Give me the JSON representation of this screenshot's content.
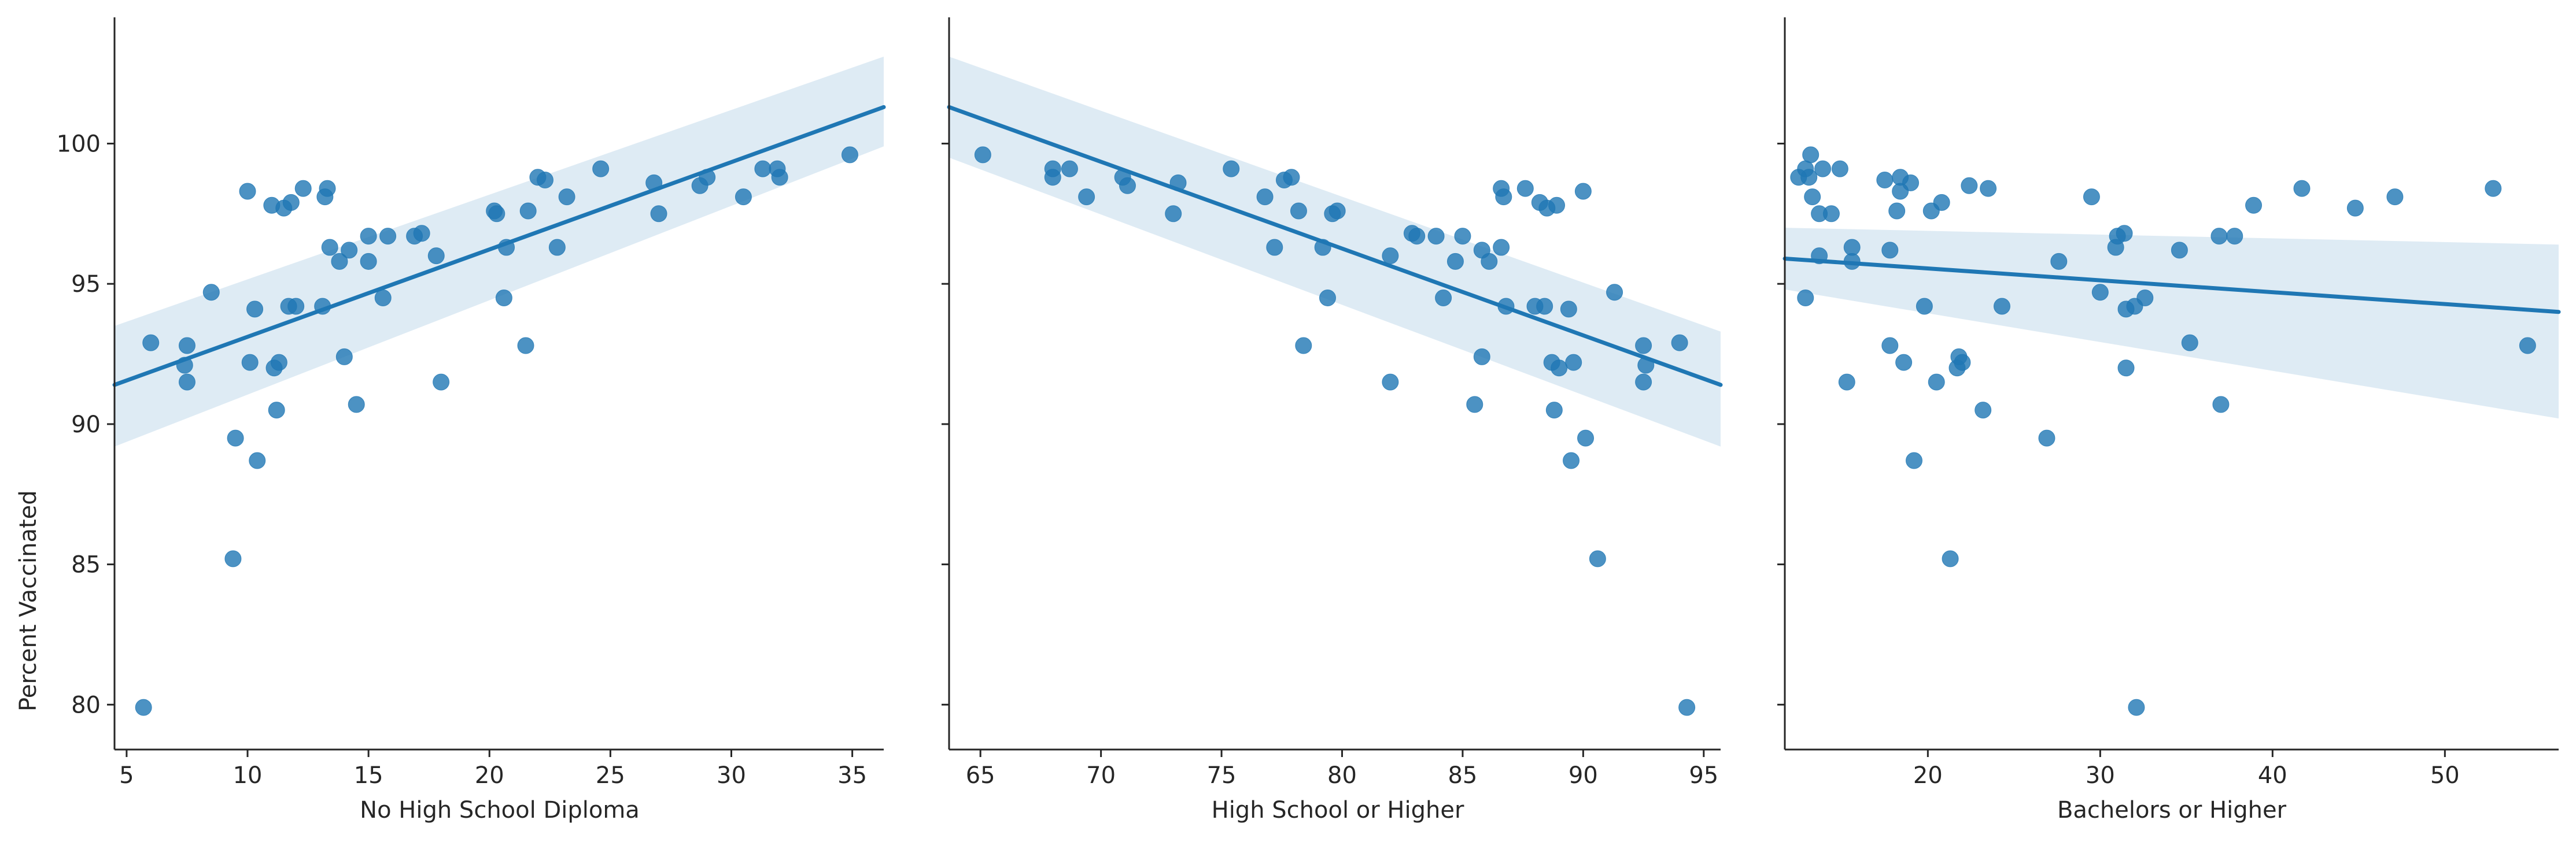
{
  "chart_data": [
    {
      "type": "scatter",
      "xlabel": "No High School Diploma",
      "ylabel": "Percent Vaccinated",
      "xlim": [
        4.5,
        36.3
      ],
      "ylim": [
        78.4,
        104.5
      ],
      "xticks": [
        "5",
        "10",
        "15",
        "20",
        "25",
        "30",
        "35"
      ],
      "yticks": [
        "80",
        "85",
        "90",
        "95",
        "100"
      ],
      "regression": {
        "x": [
          4.5,
          36.3
        ],
        "y": [
          91.4,
          101.3
        ],
        "ci_lower": [
          89.2,
          99.9
        ],
        "ci_upper": [
          93.5,
          103.1
        ]
      },
      "points": [
        [
          5.7,
          79.9
        ],
        [
          6.0,
          92.9
        ],
        [
          7.4,
          92.1
        ],
        [
          7.5,
          91.5
        ],
        [
          7.5,
          92.8
        ],
        [
          8.5,
          94.7
        ],
        [
          9.5,
          89.5
        ],
        [
          9.4,
          85.2
        ],
        [
          10.0,
          98.3
        ],
        [
          10.1,
          92.2
        ],
        [
          10.3,
          94.1
        ],
        [
          10.4,
          88.7
        ],
        [
          11.0,
          97.8
        ],
        [
          11.1,
          92.0
        ],
        [
          11.3,
          92.2
        ],
        [
          11.2,
          90.5
        ],
        [
          11.5,
          97.7
        ],
        [
          11.7,
          94.2
        ],
        [
          11.8,
          97.9
        ],
        [
          12.0,
          94.2
        ],
        [
          12.3,
          98.4
        ],
        [
          13.1,
          94.2
        ],
        [
          13.2,
          98.1
        ],
        [
          13.3,
          98.4
        ],
        [
          13.4,
          96.3
        ],
        [
          13.8,
          95.8
        ],
        [
          14.0,
          92.4
        ],
        [
          14.2,
          96.2
        ],
        [
          14.5,
          90.7
        ],
        [
          15.0,
          95.8
        ],
        [
          15.0,
          96.7
        ],
        [
          15.6,
          94.5
        ],
        [
          15.8,
          96.7
        ],
        [
          16.9,
          96.7
        ],
        [
          17.2,
          96.8
        ],
        [
          17.8,
          96.0
        ],
        [
          18.0,
          91.5
        ],
        [
          20.2,
          97.6
        ],
        [
          20.3,
          97.5
        ],
        [
          20.6,
          94.5
        ],
        [
          20.7,
          96.3
        ],
        [
          21.5,
          92.8
        ],
        [
          21.6,
          97.6
        ],
        [
          22.0,
          98.8
        ],
        [
          22.3,
          98.7
        ],
        [
          22.8,
          96.3
        ],
        [
          23.2,
          98.1
        ],
        [
          24.6,
          99.1
        ],
        [
          26.8,
          98.6
        ],
        [
          27.0,
          97.5
        ],
        [
          28.7,
          98.5
        ],
        [
          29.0,
          98.8
        ],
        [
          30.5,
          98.1
        ],
        [
          31.3,
          99.1
        ],
        [
          31.9,
          99.1
        ],
        [
          32.0,
          98.8
        ],
        [
          34.9,
          99.6
        ]
      ]
    },
    {
      "type": "scatter",
      "xlabel": "High School or Higher",
      "ylabel": "",
      "xlim": [
        63.7,
        95.7
      ],
      "ylim": [
        78.4,
        104.5
      ],
      "xticks": [
        "65",
        "70",
        "75",
        "80",
        "85",
        "90",
        "95"
      ],
      "yticks": [
        "80",
        "85",
        "90",
        "95",
        "100"
      ],
      "regression": {
        "x": [
          63.7,
          95.7
        ],
        "y": [
          101.3,
          91.4
        ],
        "ci_lower": [
          99.5,
          89.2
        ],
        "ci_upper": [
          103.1,
          93.3
        ]
      },
      "points": [
        [
          65.1,
          99.6
        ],
        [
          68.0,
          99.1
        ],
        [
          68.0,
          98.8
        ],
        [
          68.7,
          99.1
        ],
        [
          69.4,
          98.1
        ],
        [
          70.9,
          98.8
        ],
        [
          71.1,
          98.5
        ],
        [
          73.0,
          97.5
        ],
        [
          73.2,
          98.6
        ],
        [
          75.4,
          99.1
        ],
        [
          76.8,
          98.1
        ],
        [
          77.2,
          96.3
        ],
        [
          77.6,
          98.7
        ],
        [
          77.9,
          98.8
        ],
        [
          78.2,
          97.6
        ],
        [
          78.4,
          92.8
        ],
        [
          79.2,
          96.3
        ],
        [
          79.4,
          94.5
        ],
        [
          79.6,
          97.5
        ],
        [
          79.8,
          97.6
        ],
        [
          82.0,
          91.5
        ],
        [
          82.0,
          96.0
        ],
        [
          82.9,
          96.8
        ],
        [
          83.1,
          96.7
        ],
        [
          83.9,
          96.7
        ],
        [
          84.2,
          94.5
        ],
        [
          84.7,
          95.8
        ],
        [
          85.0,
          96.7
        ],
        [
          85.5,
          90.7
        ],
        [
          85.8,
          92.4
        ],
        [
          85.8,
          96.2
        ],
        [
          86.1,
          95.8
        ],
        [
          86.6,
          96.3
        ],
        [
          86.6,
          98.4
        ],
        [
          86.7,
          98.1
        ],
        [
          86.8,
          94.2
        ],
        [
          87.6,
          98.4
        ],
        [
          88.0,
          94.2
        ],
        [
          88.2,
          97.9
        ],
        [
          88.4,
          94.2
        ],
        [
          88.5,
          97.7
        ],
        [
          88.7,
          92.2
        ],
        [
          88.8,
          90.5
        ],
        [
          88.9,
          97.8
        ],
        [
          89.0,
          92.0
        ],
        [
          89.4,
          94.1
        ],
        [
          89.6,
          92.2
        ],
        [
          89.5,
          88.7
        ],
        [
          90.0,
          98.3
        ],
        [
          90.1,
          89.5
        ],
        [
          90.6,
          85.2
        ],
        [
          91.3,
          94.7
        ],
        [
          92.5,
          92.8
        ],
        [
          92.5,
          91.5
        ],
        [
          92.6,
          92.1
        ],
        [
          94.0,
          92.9
        ],
        [
          94.3,
          79.9
        ]
      ]
    },
    {
      "type": "scatter",
      "xlabel": "Bachelors or Higher",
      "ylabel": "",
      "xlim": [
        11.7,
        56.6
      ],
      "ylim": [
        78.4,
        104.5
      ],
      "xticks": [
        "20",
        "30",
        "40",
        "50"
      ],
      "yticks": [
        "80",
        "85",
        "90",
        "95",
        "100"
      ],
      "regression": {
        "x": [
          11.7,
          56.6
        ],
        "y": [
          95.9,
          94.0
        ],
        "ci_lower": [
          94.8,
          90.2
        ],
        "ci_upper": [
          97.0,
          96.4
        ]
      },
      "points": [
        [
          12.5,
          98.8
        ],
        [
          12.9,
          99.1
        ],
        [
          12.9,
          94.5
        ],
        [
          13.1,
          98.8
        ],
        [
          13.2,
          99.6
        ],
        [
          13.3,
          98.1
        ],
        [
          13.7,
          96.0
        ],
        [
          13.7,
          97.5
        ],
        [
          13.9,
          99.1
        ],
        [
          14.4,
          97.5
        ],
        [
          14.9,
          99.1
        ],
        [
          15.6,
          95.8
        ],
        [
          15.6,
          96.3
        ],
        [
          15.3,
          91.5
        ],
        [
          17.5,
          98.7
        ],
        [
          17.8,
          96.2
        ],
        [
          17.8,
          92.8
        ],
        [
          18.2,
          97.6
        ],
        [
          18.4,
          98.3
        ],
        [
          18.4,
          98.8
        ],
        [
          18.6,
          92.2
        ],
        [
          19.0,
          98.6
        ],
        [
          19.2,
          88.7
        ],
        [
          19.8,
          94.2
        ],
        [
          20.2,
          97.6
        ],
        [
          20.5,
          91.5
        ],
        [
          20.8,
          97.9
        ],
        [
          21.3,
          85.2
        ],
        [
          21.7,
          92.0
        ],
        [
          21.8,
          92.4
        ],
        [
          22.0,
          92.2
        ],
        [
          22.4,
          98.5
        ],
        [
          23.2,
          90.5
        ],
        [
          23.5,
          98.4
        ],
        [
          24.3,
          94.2
        ],
        [
          26.9,
          89.5
        ],
        [
          27.6,
          95.8
        ],
        [
          29.5,
          98.1
        ],
        [
          30.0,
          94.7
        ],
        [
          30.9,
          96.3
        ],
        [
          31.0,
          96.7
        ],
        [
          31.4,
          96.8
        ],
        [
          31.5,
          92.0
        ],
        [
          31.5,
          94.1
        ],
        [
          32.0,
          94.2
        ],
        [
          32.1,
          79.9
        ],
        [
          32.6,
          94.5
        ],
        [
          34.6,
          96.2
        ],
        [
          35.2,
          92.9
        ],
        [
          36.9,
          96.7
        ],
        [
          37.0,
          90.7
        ],
        [
          37.8,
          96.7
        ],
        [
          38.9,
          97.8
        ],
        [
          41.7,
          98.4
        ],
        [
          44.8,
          97.7
        ],
        [
          47.1,
          98.1
        ],
        [
          52.8,
          98.4
        ],
        [
          54.8,
          92.8
        ]
      ]
    }
  ],
  "colors": {
    "points": "#1f77b4",
    "line": "#1f77b4",
    "band": "#1f77b4",
    "axis": "#262626",
    "text": "#262626"
  }
}
